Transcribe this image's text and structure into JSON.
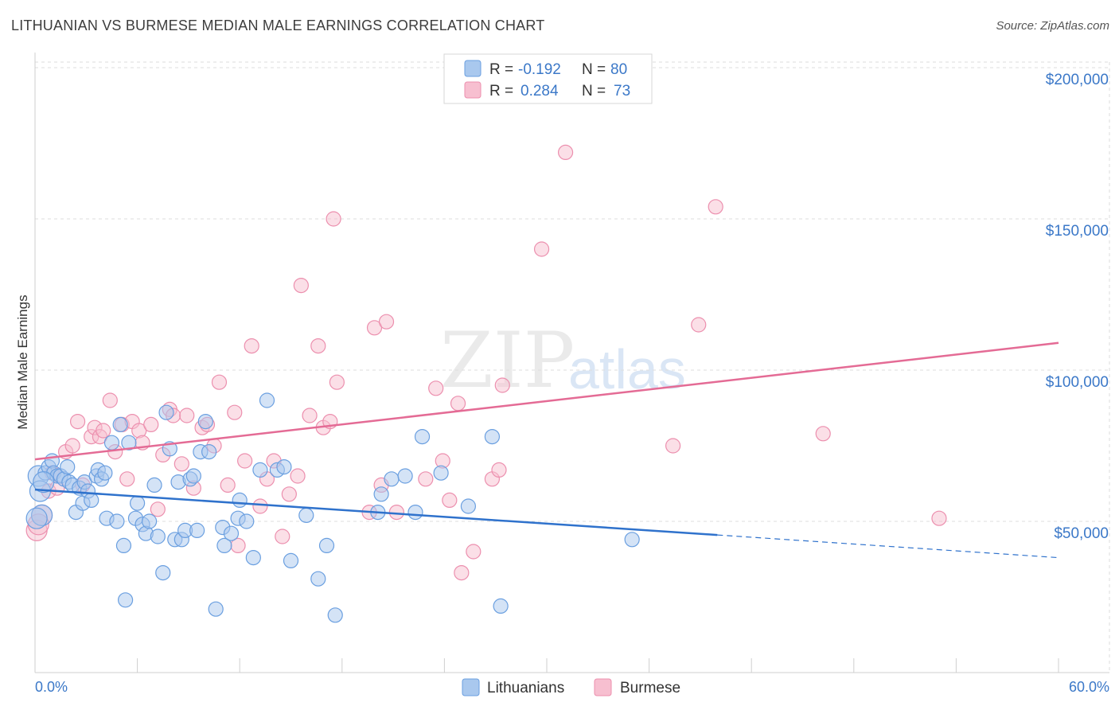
{
  "title": "LITHUANIAN VS BURMESE MEDIAN MALE EARNINGS CORRELATION CHART",
  "source": "Source: ZipAtlas.com",
  "watermark": {
    "zip": "ZIP",
    "atlas": "atlas"
  },
  "legend": {
    "rows": [
      {
        "r_label": "R =",
        "r_value": "-0.192",
        "n_label": "N =",
        "n_value": "80"
      },
      {
        "r_label": "R =",
        "r_value": "0.284",
        "n_label": "N =",
        "n_value": "73"
      }
    ]
  },
  "bottom_legend": [
    "Lithuanians",
    "Burmese"
  ],
  "colors": {
    "blue_fill": "#a9c8ee",
    "blue_stroke": "#6a9fe0",
    "blue_line": "#2f72cc",
    "pink_fill": "#f7bfd0",
    "pink_stroke": "#ec8fae",
    "pink_line": "#e46b95",
    "grid": "#dddddd",
    "tick_text": "#3b78c8"
  },
  "chart_data": {
    "type": "scatter",
    "title": "LITHUANIAN VS BURMESE MEDIAN MALE EARNINGS CORRELATION CHART",
    "xlabel": "",
    "ylabel": "Median Male Earnings",
    "xlim": [
      0,
      60
    ],
    "ylim": [
      0,
      210000
    ],
    "x_tick_labels": [
      "0.0%",
      "60.0%"
    ],
    "y_ticks": [
      50000,
      100000,
      150000,
      200000
    ],
    "y_tick_labels": [
      "$50,000",
      "$100,000",
      "$150,000",
      "$200,000"
    ],
    "series": [
      {
        "name": "Lithuanians",
        "r": -0.192,
        "n": 80,
        "trend": {
          "x0": 0,
          "y0": 60500,
          "x1": 40,
          "y1": 45500,
          "dash_to_x": 60,
          "dash_to_y": 38000
        },
        "points": [
          [
            0.2,
            65000
          ],
          [
            0.3,
            60000
          ],
          [
            0.4,
            52000
          ],
          [
            0.6,
            66000
          ],
          [
            0.8,
            68000
          ],
          [
            1.0,
            70000
          ],
          [
            1.1,
            66000
          ],
          [
            1.3,
            65000
          ],
          [
            1.5,
            65000
          ],
          [
            1.7,
            64000
          ],
          [
            1.9,
            68000
          ],
          [
            2.0,
            63000
          ],
          [
            2.2,
            62000
          ],
          [
            2.4,
            53000
          ],
          [
            2.6,
            61000
          ],
          [
            2.8,
            56000
          ],
          [
            2.9,
            63000
          ],
          [
            3.1,
            60000
          ],
          [
            3.3,
            57000
          ],
          [
            3.6,
            65000
          ],
          [
            3.7,
            67000
          ],
          [
            3.9,
            64000
          ],
          [
            4.1,
            66000
          ],
          [
            4.2,
            51000
          ],
          [
            4.5,
            76000
          ],
          [
            4.8,
            50000
          ],
          [
            5.0,
            82000
          ],
          [
            5.2,
            42000
          ],
          [
            5.3,
            24000
          ],
          [
            5.5,
            76000
          ],
          [
            5.9,
            51000
          ],
          [
            6.0,
            56000
          ],
          [
            6.3,
            49000
          ],
          [
            6.5,
            46000
          ],
          [
            6.7,
            50000
          ],
          [
            7.0,
            62000
          ],
          [
            7.2,
            45000
          ],
          [
            7.5,
            33000
          ],
          [
            7.7,
            86000
          ],
          [
            7.9,
            74000
          ],
          [
            8.2,
            44000
          ],
          [
            8.4,
            63000
          ],
          [
            8.6,
            44000
          ],
          [
            8.8,
            47000
          ],
          [
            9.1,
            64000
          ],
          [
            9.3,
            65000
          ],
          [
            9.5,
            47000
          ],
          [
            9.7,
            73000
          ],
          [
            10.0,
            83000
          ],
          [
            10.2,
            73000
          ],
          [
            10.6,
            21000
          ],
          [
            11.0,
            48000
          ],
          [
            11.1,
            42000
          ],
          [
            11.5,
            46000
          ],
          [
            11.9,
            51000
          ],
          [
            12.0,
            57000
          ],
          [
            12.4,
            50000
          ],
          [
            12.8,
            38000
          ],
          [
            13.2,
            67000
          ],
          [
            13.6,
            90000
          ],
          [
            14.2,
            67000
          ],
          [
            14.6,
            68000
          ],
          [
            15.0,
            37000
          ],
          [
            15.9,
            52000
          ],
          [
            16.6,
            31000
          ],
          [
            17.1,
            42000
          ],
          [
            17.6,
            19000
          ],
          [
            20.1,
            53000
          ],
          [
            20.3,
            59000
          ],
          [
            20.9,
            64000
          ],
          [
            21.7,
            65000
          ],
          [
            22.3,
            53000
          ],
          [
            22.7,
            78000
          ],
          [
            23.8,
            66000
          ],
          [
            25.4,
            55000
          ],
          [
            26.8,
            78000
          ],
          [
            27.3,
            22000
          ],
          [
            35.0,
            44000
          ],
          [
            0.1,
            51000
          ],
          [
            0.5,
            63000
          ]
        ]
      },
      {
        "name": "Burmese",
        "r": 0.284,
        "n": 73,
        "trend": {
          "x0": 0,
          "y0": 70500,
          "x1": 60,
          "y1": 109000
        },
        "points": [
          [
            0.1,
            47000
          ],
          [
            0.4,
            52000
          ],
          [
            0.8,
            60000
          ],
          [
            1.3,
            61000
          ],
          [
            1.8,
            73000
          ],
          [
            2.2,
            75000
          ],
          [
            2.5,
            83000
          ],
          [
            2.8,
            62000
          ],
          [
            3.3,
            78000
          ],
          [
            3.5,
            81000
          ],
          [
            3.8,
            78000
          ],
          [
            4.0,
            80000
          ],
          [
            4.4,
            90000
          ],
          [
            4.7,
            73000
          ],
          [
            5.1,
            82000
          ],
          [
            5.4,
            64000
          ],
          [
            5.7,
            83000
          ],
          [
            6.1,
            80000
          ],
          [
            6.3,
            76000
          ],
          [
            6.8,
            82000
          ],
          [
            7.2,
            54000
          ],
          [
            7.5,
            72000
          ],
          [
            7.9,
            87000
          ],
          [
            8.1,
            85000
          ],
          [
            8.6,
            69000
          ],
          [
            8.9,
            85000
          ],
          [
            9.3,
            61000
          ],
          [
            9.8,
            81000
          ],
          [
            10.1,
            82000
          ],
          [
            10.5,
            75000
          ],
          [
            10.8,
            96000
          ],
          [
            11.3,
            62000
          ],
          [
            11.7,
            86000
          ],
          [
            11.9,
            42000
          ],
          [
            12.3,
            70000
          ],
          [
            12.7,
            108000
          ],
          [
            13.2,
            55000
          ],
          [
            13.6,
            64000
          ],
          [
            14.0,
            70000
          ],
          [
            14.5,
            45000
          ],
          [
            14.9,
            59000
          ],
          [
            15.4,
            65000
          ],
          [
            15.6,
            128000
          ],
          [
            16.1,
            85000
          ],
          [
            16.6,
            108000
          ],
          [
            16.9,
            81000
          ],
          [
            17.3,
            83000
          ],
          [
            17.5,
            150000
          ],
          [
            17.7,
            96000
          ],
          [
            19.6,
            53000
          ],
          [
            19.9,
            114000
          ],
          [
            20.3,
            62000
          ],
          [
            20.6,
            116000
          ],
          [
            21.2,
            53000
          ],
          [
            22.9,
            64000
          ],
          [
            23.5,
            94000
          ],
          [
            23.9,
            70000
          ],
          [
            24.3,
            57000
          ],
          [
            24.8,
            89000
          ],
          [
            25.0,
            33000
          ],
          [
            25.7,
            40000
          ],
          [
            26.8,
            64000
          ],
          [
            27.2,
            67000
          ],
          [
            27.4,
            95000
          ],
          [
            29.7,
            140000
          ],
          [
            31.1,
            172000
          ],
          [
            37.4,
            75000
          ],
          [
            38.9,
            115000
          ],
          [
            39.9,
            154000
          ],
          [
            46.2,
            79000
          ],
          [
            53.0,
            51000
          ],
          [
            0.2,
            49000
          ],
          [
            1.0,
            66000
          ]
        ]
      }
    ]
  }
}
